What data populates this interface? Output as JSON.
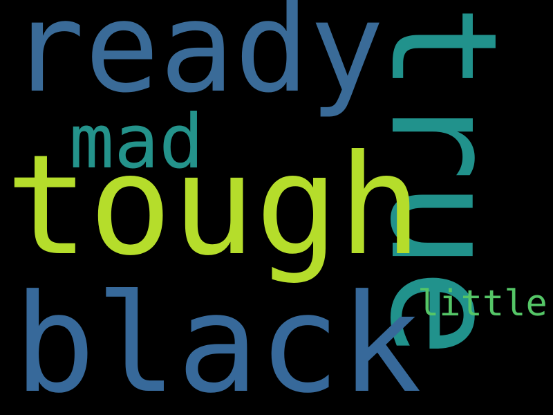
{
  "background": "#000000",
  "words": [
    {
      "text": "ready",
      "color": "#3a6b98"
    },
    {
      "text": "true",
      "color": "#21928c"
    },
    {
      "text": "mad",
      "color": "#24938b"
    },
    {
      "text": "tough",
      "color": "#b5dd2b"
    },
    {
      "text": "little",
      "color": "#55c667"
    },
    {
      "text": "black",
      "color": "#37699a"
    }
  ]
}
